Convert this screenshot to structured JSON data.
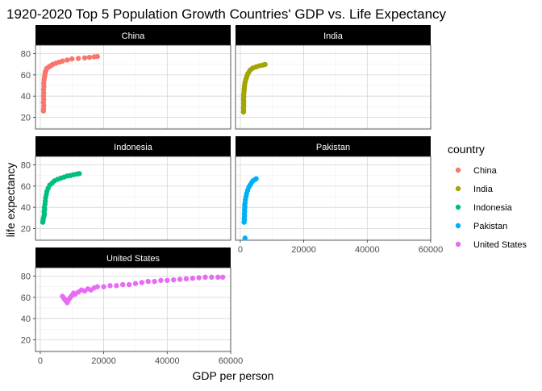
{
  "chart_data": {
    "type": "scatter",
    "title": "1920-2020 Top 5 Population Growth Countries' GDP vs. Life Expectancy",
    "xlabel": "GDP per person",
    "ylabel": "life expectancy",
    "xlim": [
      -1500,
      60000
    ],
    "ylim": [
      9,
      88
    ],
    "xticks": [
      0,
      20000,
      40000,
      60000
    ],
    "yticks": [
      20,
      40,
      60,
      80
    ],
    "grid": true,
    "facet_strip_style": "black",
    "legend": {
      "title": "country",
      "position": "right",
      "entries": [
        "China",
        "India",
        "Indonesia",
        "Pakistan",
        "United States"
      ]
    },
    "series": [
      {
        "name": "China",
        "color": "#F8766D",
        "points": [
          [
            1000,
            26
          ],
          [
            1050,
            28
          ],
          [
            1100,
            31
          ],
          [
            1000,
            34
          ],
          [
            1100,
            37
          ],
          [
            1050,
            40
          ],
          [
            1100,
            43
          ],
          [
            1050,
            46
          ],
          [
            1150,
            49
          ],
          [
            1100,
            52
          ],
          [
            1200,
            55
          ],
          [
            1300,
            57
          ],
          [
            1400,
            59
          ],
          [
            1500,
            61
          ],
          [
            1600,
            63
          ],
          [
            1800,
            64
          ],
          [
            2000,
            66
          ],
          [
            2500,
            67
          ],
          [
            3000,
            68
          ],
          [
            3500,
            69
          ],
          [
            4000,
            70
          ],
          [
            5000,
            71
          ],
          [
            6000,
            72
          ],
          [
            7000,
            73
          ],
          [
            8500,
            74
          ],
          [
            10000,
            75
          ],
          [
            12000,
            75.5
          ],
          [
            14000,
            76
          ],
          [
            15500,
            76.5
          ],
          [
            17000,
            77
          ],
          [
            18000,
            77.3
          ]
        ]
      },
      {
        "name": "India",
        "color": "#A3A500",
        "points": [
          [
            1000,
            25
          ],
          [
            1050,
            27
          ],
          [
            1000,
            29
          ],
          [
            1100,
            31
          ],
          [
            1050,
            33
          ],
          [
            1100,
            35
          ],
          [
            1000,
            37
          ],
          [
            1100,
            39
          ],
          [
            1050,
            41
          ],
          [
            1150,
            43
          ],
          [
            1200,
            45
          ],
          [
            1250,
            47
          ],
          [
            1300,
            49
          ],
          [
            1400,
            51
          ],
          [
            1500,
            53
          ],
          [
            1700,
            55
          ],
          [
            1900,
            57
          ],
          [
            2100,
            59
          ],
          [
            2400,
            61
          ],
          [
            2800,
            63
          ],
          [
            3300,
            65
          ],
          [
            4000,
            66.5
          ],
          [
            5000,
            67.5
          ],
          [
            6000,
            68.5
          ],
          [
            7000,
            69.2
          ],
          [
            7800,
            69.8
          ]
        ]
      },
      {
        "name": "Indonesia",
        "color": "#00BF7D",
        "points": [
          [
            800,
            26
          ],
          [
            900,
            28
          ],
          [
            1000,
            30
          ],
          [
            1200,
            32
          ],
          [
            1300,
            34
          ],
          [
            1200,
            36
          ],
          [
            1400,
            38
          ],
          [
            1300,
            40
          ],
          [
            1500,
            43
          ],
          [
            1600,
            46
          ],
          [
            1700,
            49
          ],
          [
            1900,
            52
          ],
          [
            2100,
            55
          ],
          [
            2500,
            58
          ],
          [
            3000,
            61
          ],
          [
            3800,
            63
          ],
          [
            4500,
            65
          ],
          [
            5500,
            66.5
          ],
          [
            6500,
            67.5
          ],
          [
            7500,
            68.5
          ],
          [
            8500,
            69.5
          ],
          [
            9500,
            70
          ],
          [
            10500,
            70.8
          ],
          [
            11500,
            71.3
          ],
          [
            12300,
            71.8
          ]
        ]
      },
      {
        "name": "Pakistan",
        "color": "#00B0F6",
        "points": [
          [
            1500,
            11
          ],
          [
            1200,
            26
          ],
          [
            1300,
            28
          ],
          [
            1250,
            30
          ],
          [
            1350,
            32
          ],
          [
            1300,
            34
          ],
          [
            1400,
            36
          ],
          [
            1350,
            38
          ],
          [
            1450,
            40
          ],
          [
            1400,
            42
          ],
          [
            1500,
            44
          ],
          [
            1600,
            47
          ],
          [
            1800,
            50
          ],
          [
            2000,
            53
          ],
          [
            2300,
            56
          ],
          [
            2700,
            59
          ],
          [
            3100,
            61
          ],
          [
            3500,
            63
          ],
          [
            4000,
            65
          ],
          [
            4500,
            66
          ],
          [
            5000,
            67
          ]
        ]
      },
      {
        "name": "United States",
        "color": "#E76BF3",
        "points": [
          [
            7000,
            61
          ],
          [
            7500,
            59
          ],
          [
            8000,
            57
          ],
          [
            8500,
            55
          ],
          [
            9000,
            58
          ],
          [
            9500,
            60
          ],
          [
            10000,
            62
          ],
          [
            10500,
            64
          ],
          [
            11000,
            63
          ],
          [
            12000,
            65
          ],
          [
            13000,
            67
          ],
          [
            14000,
            66
          ],
          [
            15000,
            68
          ],
          [
            16000,
            67
          ],
          [
            17000,
            69
          ],
          [
            18000,
            70
          ],
          [
            20000,
            70
          ],
          [
            22000,
            71
          ],
          [
            24000,
            71
          ],
          [
            26000,
            72
          ],
          [
            28000,
            72
          ],
          [
            30000,
            73
          ],
          [
            32000,
            74
          ],
          [
            34000,
            75
          ],
          [
            36000,
            75
          ],
          [
            38000,
            76
          ],
          [
            40000,
            76
          ],
          [
            42000,
            76.5
          ],
          [
            44000,
            77
          ],
          [
            46000,
            77.5
          ],
          [
            48000,
            78
          ],
          [
            50000,
            78.5
          ],
          [
            52000,
            79
          ],
          [
            54000,
            79
          ],
          [
            56000,
            79
          ],
          [
            57500,
            79
          ]
        ]
      }
    ]
  }
}
